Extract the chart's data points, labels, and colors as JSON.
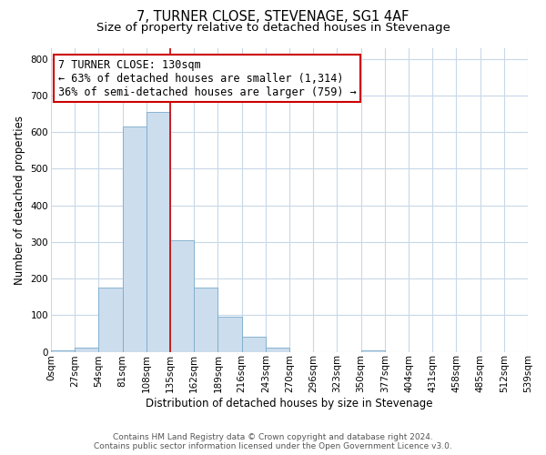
{
  "title": "7, TURNER CLOSE, STEVENAGE, SG1 4AF",
  "subtitle": "Size of property relative to detached houses in Stevenage",
  "xlabel": "Distribution of detached houses by size in Stevenage",
  "ylabel": "Number of detached properties",
  "bar_edges": [
    0,
    27,
    54,
    81,
    108,
    135,
    162,
    189,
    216,
    243,
    270,
    297,
    324,
    351,
    378,
    405,
    432,
    459,
    486,
    513,
    540
  ],
  "bar_heights": [
    5,
    12,
    175,
    615,
    655,
    305,
    175,
    97,
    40,
    12,
    0,
    0,
    0,
    5,
    0,
    0,
    0,
    0,
    0,
    0
  ],
  "bar_color": "#ccdded",
  "bar_edgecolor": "#7aabcc",
  "property_line_x": 135,
  "property_line_color": "#cc0000",
  "ylim": [
    0,
    830
  ],
  "xlim": [
    0,
    540
  ],
  "annotation_title": "7 TURNER CLOSE: 130sqm",
  "annotation_line1": "← 63% of detached houses are smaller (1,314)",
  "annotation_line2": "36% of semi-detached houses are larger (759) →",
  "annotation_box_color": "#cc0000",
  "tick_labels": [
    "0sqm",
    "27sqm",
    "54sqm",
    "81sqm",
    "108sqm",
    "135sqm",
    "162sqm",
    "189sqm",
    "216sqm",
    "243sqm",
    "270sqm",
    "296sqm",
    "323sqm",
    "350sqm",
    "377sqm",
    "404sqm",
    "431sqm",
    "458sqm",
    "485sqm",
    "512sqm",
    "539sqm"
  ],
  "footer_line1": "Contains HM Land Registry data © Crown copyright and database right 2024.",
  "footer_line2": "Contains public sector information licensed under the Open Government Licence v3.0.",
  "background_color": "#ffffff",
  "grid_color": "#c8d8e8",
  "title_fontsize": 10.5,
  "subtitle_fontsize": 9.5,
  "axis_label_fontsize": 8.5,
  "tick_fontsize": 7.5,
  "annotation_fontsize": 8.5,
  "footer_fontsize": 6.5
}
